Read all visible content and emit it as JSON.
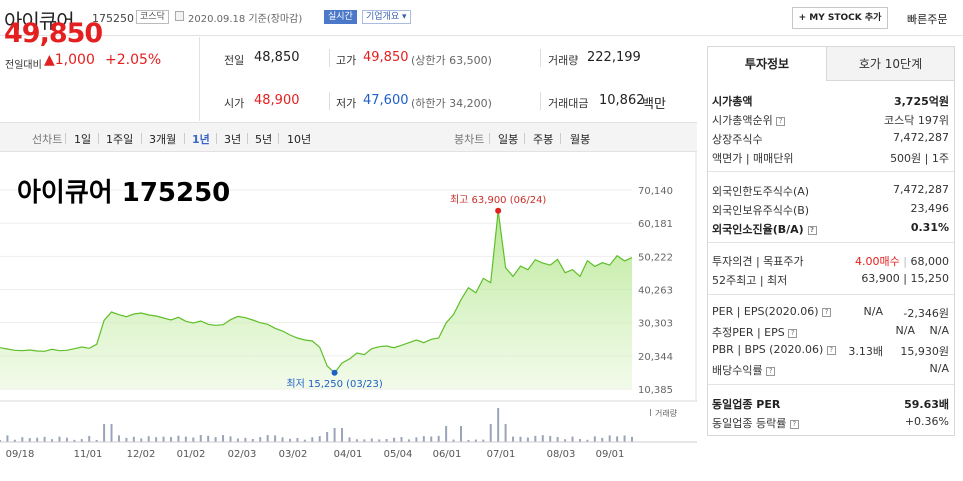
{
  "header": {
    "name": "아이큐어",
    "code": "175250",
    "market": "코스닥",
    "date": "2020.09.18 기준(장마감)",
    "realtime": "실시간",
    "overview": "기업개요",
    "mystock": "+ MY STOCK 추가",
    "quick": "빠른주문"
  },
  "price": {
    "current": "49,850",
    "diff_label": "전일대비",
    "diff": "▲1,000",
    "diff_pct": "+2.05%"
  },
  "quote": {
    "prev_label": "전일",
    "prev": "48,850",
    "high_label": "고가",
    "high": "49,850",
    "upper": "(상한가 63,500)",
    "vol_label": "거래량",
    "vol": "222,199",
    "open_label": "시가",
    "open": "48,900",
    "low_label": "저가",
    "low": "47,600",
    "lower": "(하한가 34,200)",
    "amt_label": "거래대금",
    "amt": "10,862",
    "amt_unit": "백만"
  },
  "periods": {
    "line_label": "선차트",
    "line": [
      "1일",
      "1주일",
      "3개월",
      "1년",
      "3년",
      "5년",
      "10년"
    ],
    "candle_label": "봉차트",
    "candle": [
      "일봉",
      "주봉",
      "월봉"
    ]
  },
  "chart_data": {
    "type": "area",
    "title": "아이큐어 175250",
    "y_ticks": [
      "70,140",
      "60,181",
      "50,222",
      "40,263",
      "30,303",
      "20,344",
      "10,385"
    ],
    "ylim": [
      10385,
      70140
    ],
    "x_ticks": [
      "09/18",
      "11/01",
      "12/02",
      "01/02",
      "02/03",
      "03/02",
      "04/01",
      "05/04",
      "06/01",
      "07/01",
      "08/03",
      "09/01"
    ],
    "high_label": "최고 63,900 (06/24)",
    "low_label": "최저 15,250 (03/23)",
    "volume_label": "거래량",
    "values": [
      22800,
      22400,
      22000,
      21900,
      22100,
      21800,
      21700,
      22300,
      21900,
      22000,
      22500,
      23000,
      22600,
      23800,
      31000,
      33500,
      32700,
      32100,
      32900,
      33200,
      32600,
      32300,
      31700,
      31100,
      31900,
      30700,
      30200,
      30800,
      29800,
      29500,
      29700,
      31200,
      32200,
      31800,
      31100,
      30300,
      29800,
      28600,
      27800,
      26600,
      25700,
      25100,
      24800,
      22900,
      17300,
      15250,
      18200,
      19400,
      21200,
      20700,
      22500,
      23100,
      23300,
      22800,
      23500,
      24300,
      25100,
      24300,
      25300,
      25700,
      30200,
      32800,
      37200,
      40800,
      39300,
      43600,
      42300,
      63900,
      46800,
      44200,
      47300,
      46200,
      49200,
      48200,
      47600,
      49300,
      45300,
      46200,
      44200,
      48900,
      47200,
      48300,
      47600,
      50400,
      48850,
      49850
    ]
  },
  "right": {
    "tab1": "투자정보",
    "tab2": "호가 10단계",
    "rows1": [
      {
        "l": "시가총액",
        "v": "3,725억원",
        "b": true
      },
      {
        "l": "시가총액순위",
        "v": "코스닥 197위",
        "q": true
      },
      {
        "l": "상장주식수",
        "v": "7,472,287"
      },
      {
        "l": "액면가 | 매매단위",
        "v": "500원 | 1주"
      }
    ],
    "rows2": [
      {
        "l": "외국인한도주식수(A)",
        "v": "7,472,287"
      },
      {
        "l": "외국인보유주식수(B)",
        "v": "23,496"
      },
      {
        "l": "외국인소진율(B/A)",
        "v": "0.31%",
        "b": true,
        "q": true
      }
    ],
    "opinion_label": "투자의견 | 목표주가",
    "opinion": "4.00매수",
    "target": "68,000",
    "week52_label": "52주최고 | 최저",
    "week52": "63,900 | 15,250",
    "per_label": "PER | EPS(2020.06)",
    "per": "N/A",
    "eps": "-2,346원",
    "eper_label": "추정PER | EPS",
    "eper": "N/A",
    "eeps": "N/A",
    "pbr_label": "PBR | BPS (2020.06)",
    "pbr": "3.13배",
    "bps": "15,930원",
    "div_label": "배당수익률",
    "div": "N/A",
    "ind_per_label": "동일업종 PER",
    "ind_per": "59.63배",
    "ind_rate_label": "동일업종 등락률",
    "ind_rate": "+0.36%"
  }
}
